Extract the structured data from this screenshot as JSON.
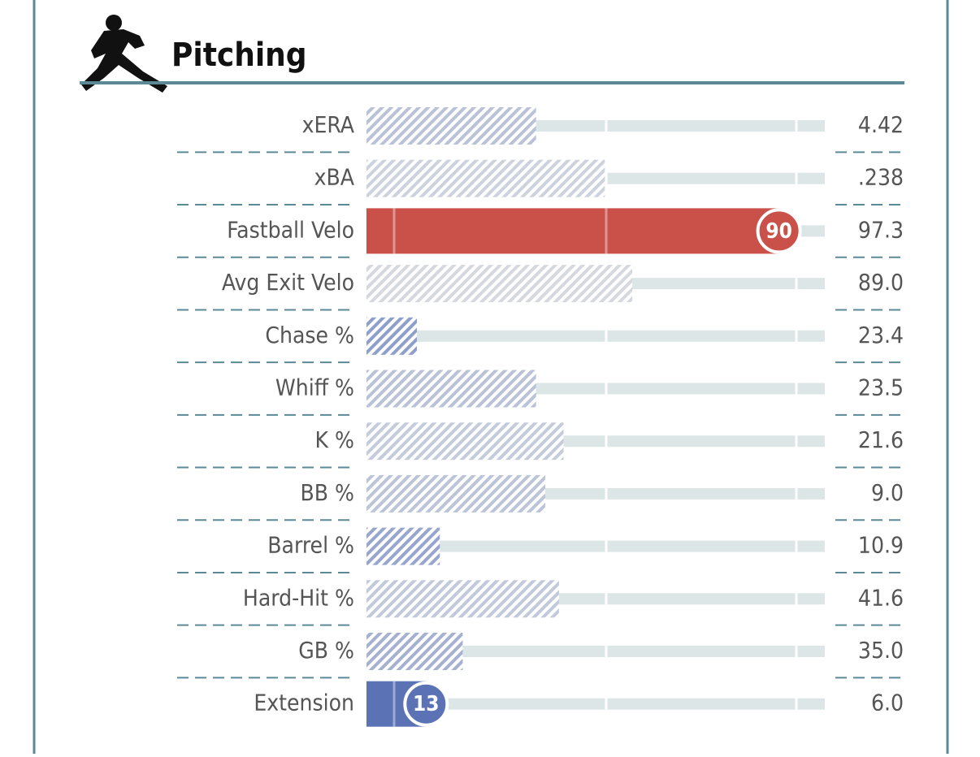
{
  "chart_data": {
    "type": "percentile",
    "title": "Pitching",
    "categories": [
      "xERA",
      "xBA",
      "Fastball Velo",
      "Avg Exit Velo",
      "Chase %",
      "Whiff %",
      "K %",
      "BB %",
      "Barrel %",
      "Hard-Hit %",
      "GB %",
      "Extension"
    ],
    "values": [
      37,
      52,
      90,
      58,
      11,
      37,
      43,
      39,
      16,
      42,
      21,
      13
    ],
    "highlighted": [
      false,
      false,
      true,
      false,
      false,
      false,
      false,
      false,
      false,
      false,
      false,
      true
    ],
    "colors": [
      "#b9c2d6",
      "#cdd3de",
      "#c9514a",
      "#d5d8de",
      "#8f9fcb",
      "#b9c2d6",
      "#c4cbda",
      "#bcc4d8",
      "#98a6cf",
      "#c2c9da",
      "#a6b1d2",
      "#5b73b5"
    ],
    "stats": [
      "4.42",
      ".238",
      "97.3",
      "89.0",
      "23.4",
      "23.5",
      "21.6",
      "9.0",
      "10.9",
      "41.6",
      "35.0",
      "6.0"
    ],
    "xlim": [
      0,
      100
    ]
  }
}
